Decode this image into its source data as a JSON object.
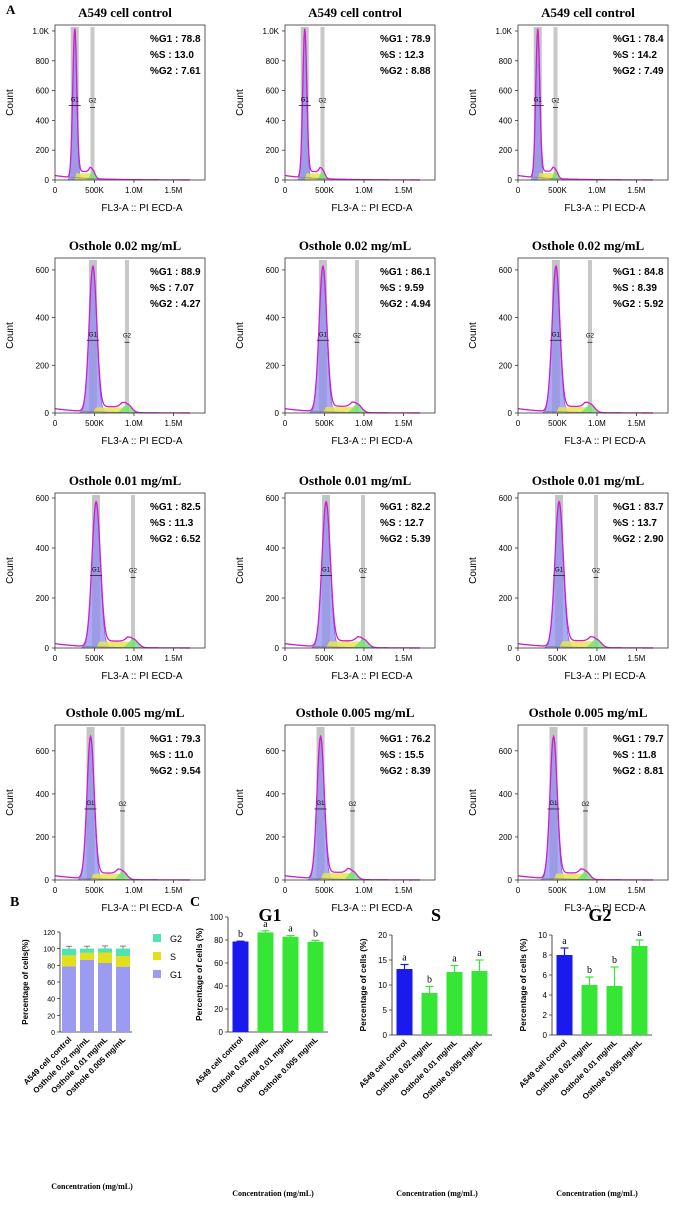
{
  "panel_labels": {
    "a": "A",
    "b": "B",
    "c": "C"
  },
  "flow": {
    "xlabel": "FL3-A :: PI ECD-A",
    "ylabel": "Count",
    "gate_labels": [
      "G1",
      "G2"
    ],
    "stat_keys": [
      "%G1 : ",
      "%S : ",
      "%G2 : "
    ],
    "x_ticks": [
      "0",
      "500K",
      "1.0M",
      "1.5M"
    ],
    "rows": [
      {
        "title": "A549 cell control",
        "y_ticks": [
          [
            "0",
            "0"
          ],
          [
            "200",
            "200"
          ],
          [
            "400",
            "400"
          ],
          [
            "600",
            "600"
          ],
          [
            "800",
            "800"
          ],
          [
            "1.0K",
            "1000"
          ]
        ],
        "ymax": 1040,
        "g1_pos": 250000,
        "peak": 1000
      },
      {
        "title": "Osthole 0.02 mg/mL",
        "y_ticks": [
          [
            "0",
            "0"
          ],
          [
            "200",
            "200"
          ],
          [
            "400",
            "400"
          ],
          [
            "600",
            "600"
          ]
        ],
        "ymax": 650,
        "g1_pos": 480000,
        "peak": 610
      },
      {
        "title": "Osthole 0.01 mg/mL",
        "y_ticks": [
          [
            "0",
            "0"
          ],
          [
            "200",
            "200"
          ],
          [
            "400",
            "400"
          ],
          [
            "600",
            "600"
          ]
        ],
        "ymax": 620,
        "g1_pos": 520000,
        "peak": 580
      },
      {
        "title": "Osthole 0.005 mg/mL",
        "y_ticks": [
          [
            "0",
            "0"
          ],
          [
            "200",
            "200"
          ],
          [
            "400",
            "400"
          ],
          [
            "600",
            "600"
          ]
        ],
        "ymax": 720,
        "g1_pos": 450000,
        "peak": 660
      }
    ],
    "stats": [
      [
        [
          "78.8",
          "13.0",
          "7.61"
        ],
        [
          "78.9",
          "12.3",
          "8.88"
        ],
        [
          "78.4",
          "14.2",
          "7.49"
        ]
      ],
      [
        [
          "88.9",
          "7.07",
          "4.27"
        ],
        [
          "86.1",
          "9.59",
          "4.94"
        ],
        [
          "84.8",
          "8.39",
          "5.92"
        ]
      ],
      [
        [
          "82.5",
          "11.3",
          "6.52"
        ],
        [
          "82.2",
          "12.7",
          "5.39"
        ],
        [
          "83.7",
          "13.7",
          "2.90"
        ]
      ],
      [
        [
          "79.3",
          "11.0",
          "9.54"
        ],
        [
          "76.2",
          "15.5",
          "8.39"
        ],
        [
          "79.7",
          "11.8",
          "8.81"
        ]
      ]
    ]
  },
  "chart_data": [
    {
      "type": "bar",
      "stacked": true,
      "panel": "B",
      "categories": [
        "A549 cell control",
        "Osthole 0.02 mg/mL",
        "Osthole 0.01 mg/mL",
        "Osthole 0.005 mg/mL"
      ],
      "series": [
        {
          "name": "G1",
          "color": "#9b9bf2",
          "values": [
            78.7,
            86.6,
            82.8,
            78.4
          ]
        },
        {
          "name": "S",
          "color": "#e3df1a",
          "values": [
            13.2,
            8.4,
            12.6,
            12.8
          ]
        },
        {
          "name": "G2",
          "color": "#4fe3b0",
          "values": [
            8.0,
            5.0,
            4.9,
            8.9
          ]
        }
      ],
      "title": "",
      "xlabel": "Concentration (mg/mL)",
      "ylabel": "Percentage of cells(%)",
      "ylim": [
        0,
        120
      ],
      "yticks": [
        0,
        20,
        40,
        60,
        80,
        100,
        120
      ],
      "legend": "top-left",
      "legend_order": [
        "G2",
        "S",
        "G1"
      ]
    },
    {
      "type": "bar",
      "panel": "C",
      "title": "G1",
      "categories": [
        "A549 cell control",
        "Osthole 0.02 mg/mL",
        "Osthole 0.01 mg/mL",
        "Osthole 0.005 mg/mL"
      ],
      "values": [
        78.7,
        86.6,
        82.8,
        78.4
      ],
      "errors": [
        0.3,
        1.4,
        1.0,
        1.3
      ],
      "letters": [
        "b",
        "a",
        "a",
        "b"
      ],
      "colors": [
        "#1a1aee",
        "#35e635",
        "#35e635",
        "#35e635"
      ],
      "xlabel": "Concentration (mg/mL)",
      "ylabel": "Percentage of cells (%)",
      "ylim": [
        0,
        100
      ],
      "yticks": [
        0,
        20,
        40,
        60,
        80,
        100
      ]
    },
    {
      "type": "bar",
      "panel": "C",
      "title": "S",
      "categories": [
        "A549 cell control",
        "Osthole 0.02 mg/mL",
        "Osthole 0.01 mg/mL",
        "Osthole 0.005 mg/mL"
      ],
      "values": [
        13.2,
        8.4,
        12.6,
        12.8
      ],
      "errors": [
        0.9,
        1.3,
        1.3,
        2.2
      ],
      "letters": [
        "a",
        "b",
        "a",
        "a"
      ],
      "colors": [
        "#1a1aee",
        "#35e635",
        "#35e635",
        "#35e635"
      ],
      "xlabel": "Concentration (mg/mL)",
      "ylabel": "Percentage of cells (%)",
      "ylim": [
        0,
        20
      ],
      "yticks": [
        0,
        5,
        10,
        15,
        20
      ]
    },
    {
      "type": "bar",
      "panel": "C",
      "title": "G2",
      "categories": [
        "A549 cell control",
        "Osthole 0.02 mg/mL",
        "Osthole 0.01 mg/mL",
        "Osthole 0.005 mg/mL"
      ],
      "values": [
        8.0,
        5.0,
        4.9,
        8.9
      ],
      "errors": [
        0.7,
        0.8,
        1.9,
        0.6
      ],
      "letters": [
        "a",
        "b",
        "b",
        "a"
      ],
      "colors": [
        "#1a1aee",
        "#35e635",
        "#35e635",
        "#35e635"
      ],
      "xlabel": "Concentration (mg/mL)",
      "ylabel": "Percentage of cells (%)",
      "ylim": [
        0,
        10
      ],
      "yticks": [
        0,
        2,
        4,
        6,
        8,
        10
      ]
    }
  ]
}
